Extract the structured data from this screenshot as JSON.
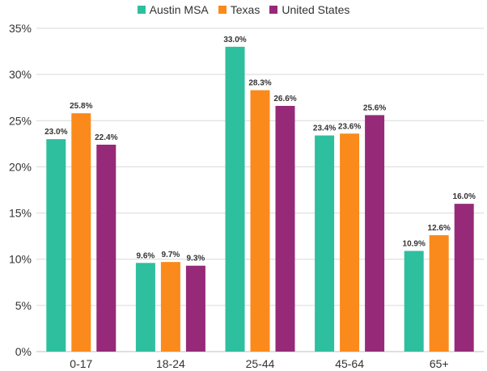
{
  "chart_data": {
    "type": "bar",
    "categories": [
      "0-17",
      "18-24",
      "25-44",
      "45-64",
      "65+"
    ],
    "series": [
      {
        "name": "Austin MSA",
        "color": "#2ebf9f",
        "values": [
          23.0,
          9.6,
          33.0,
          23.4,
          10.9
        ],
        "labels": [
          "23.0%",
          "9.6%",
          "33.0%",
          "23.4%",
          "10.9%"
        ]
      },
      {
        "name": "Texas",
        "color": "#fa8a1c",
        "values": [
          25.8,
          9.7,
          28.3,
          23.6,
          12.6
        ],
        "labels": [
          "25.8%",
          "9.7%",
          "28.3%",
          "23.6%",
          "12.6%"
        ]
      },
      {
        "name": "United States",
        "color": "#962a78",
        "values": [
          22.4,
          9.3,
          26.6,
          25.6,
          16.0
        ],
        "labels": [
          "22.4%",
          "9.3%",
          "26.6%",
          "25.6%",
          "16.0%"
        ]
      }
    ],
    "ylim": [
      0,
      35
    ],
    "yticks": [
      0,
      5,
      10,
      15,
      20,
      25,
      30,
      35
    ],
    "ytick_labels": [
      "0%",
      "5%",
      "10%",
      "15%",
      "20%",
      "25%",
      "30%",
      "35%"
    ],
    "grid": true,
    "legend_position": "top"
  }
}
